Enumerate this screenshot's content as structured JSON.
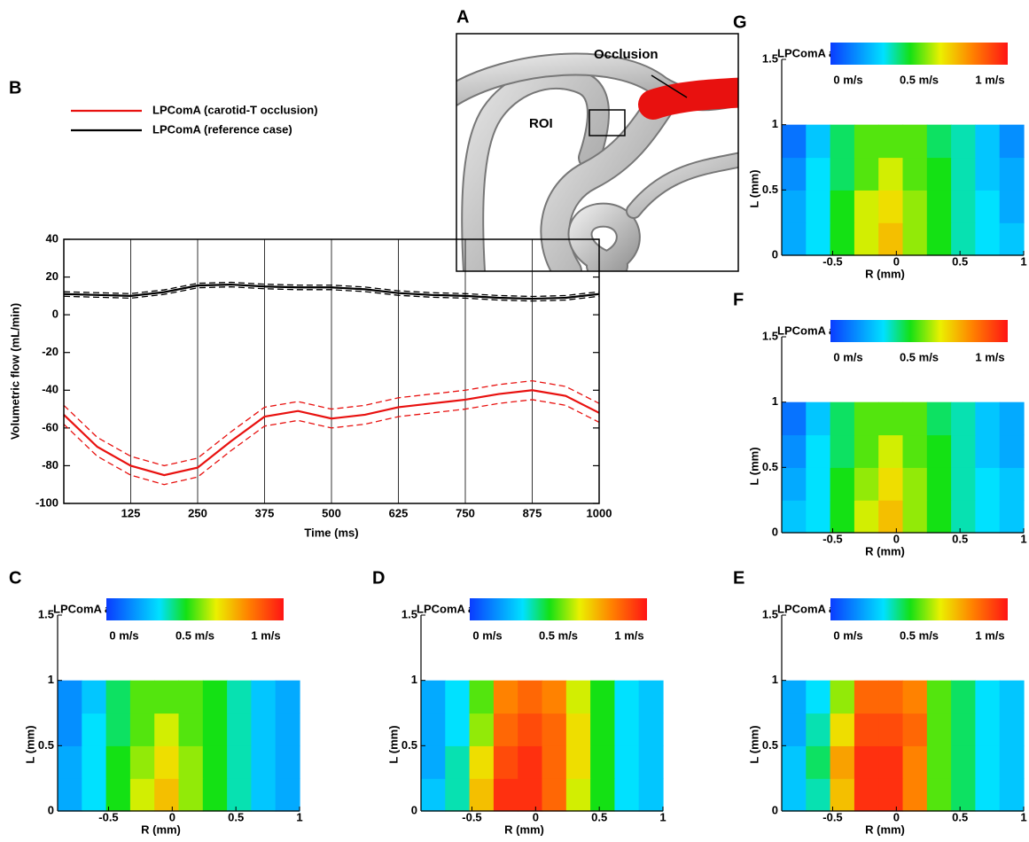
{
  "panel_a": {
    "label": "A",
    "annotations": {
      "occlusion": "Occlusion",
      "roi": "ROI"
    }
  },
  "chart_data": [
    {
      "type": "line",
      "panel": "B",
      "xlabel": "Time (ms)",
      "ylabel": "Volumetric flow (mL/min)",
      "x": [
        0,
        62.5,
        125,
        187.5,
        250,
        312.5,
        375,
        437.5,
        500,
        562.5,
        625,
        687.5,
        750,
        812.5,
        875,
        937.5,
        1000
      ],
      "xlim": [
        0,
        1000
      ],
      "xticks": [
        125,
        250,
        375,
        500,
        625,
        750,
        875,
        1000
      ],
      "ylim": [
        -100,
        40
      ],
      "yticks": [
        -100,
        -80,
        -60,
        -40,
        -20,
        0,
        20,
        40
      ],
      "grid": "x",
      "series": [
        {
          "name": "LPComA (carotid-T occlusion)",
          "color": "#e8110f",
          "values": [
            -53,
            -70,
            -80,
            -85,
            -81,
            -67,
            -54,
            -51,
            -55,
            -53,
            -49,
            -47,
            -45,
            -42,
            -40,
            -43,
            -52
          ],
          "upper": [
            -48,
            -65,
            -75,
            -80,
            -76,
            -62,
            -49,
            -46,
            -50,
            -48,
            -44,
            -42,
            -40,
            -37,
            -35,
            -38,
            -47
          ],
          "lower": [
            -58,
            -75,
            -85,
            -90,
            -86,
            -72,
            -59,
            -56,
            -60,
            -58,
            -54,
            -52,
            -50,
            -47,
            -45,
            -48,
            -57
          ]
        },
        {
          "name": "LPComA (reference case)",
          "color": "#000000",
          "values": [
            11,
            10.5,
            10,
            12,
            15.5,
            16,
            15,
            14.5,
            14.5,
            13.5,
            11.5,
            10.5,
            10,
            9,
            8.5,
            9,
            11
          ],
          "upper": [
            12.2,
            11.7,
            11.2,
            13.2,
            16.7,
            17.2,
            16.2,
            15.7,
            15.7,
            14.7,
            12.7,
            11.7,
            11.2,
            10.2,
            9.7,
            10.2,
            12.2
          ],
          "lower": [
            9.8,
            9.3,
            8.8,
            10.8,
            14.3,
            14.8,
            13.8,
            13.3,
            13.3,
            12.3,
            10.3,
            9.3,
            8.8,
            7.8,
            7.3,
            7.8,
            9.8
          ]
        }
      ]
    },
    {
      "type": "heatmap",
      "panel": "C",
      "title": "LPComA at 0 ms",
      "xlabel": "R (mm)",
      "ylabel": "L (mm)",
      "xlim": [
        -0.9,
        1
      ],
      "xticks": [
        -0.5,
        0,
        0.5,
        1
      ],
      "ylim": [
        0,
        1.5
      ],
      "yticks": [
        0,
        0.5,
        1,
        1.5
      ],
      "zlim": [
        0,
        1
      ],
      "colorbar_ticks": [
        {
          "value": 0,
          "label": "0 m/s"
        },
        {
          "value": 0.5,
          "label": "0.5 m/s"
        },
        {
          "value": 1,
          "label": "1 m/s"
        }
      ],
      "x_edges": [
        -0.9,
        -0.71,
        -0.52,
        -0.33,
        -0.14,
        0.05,
        0.24,
        0.43,
        0.62,
        0.81,
        1
      ],
      "y_edges": [
        0,
        0.25,
        0.5,
        0.75,
        1
      ],
      "z": [
        [
          0.2,
          0.3,
          0.45,
          0.6,
          0.7,
          0.55,
          0.45,
          0.35,
          0.25,
          0.2
        ],
        [
          0.2,
          0.3,
          0.45,
          0.55,
          0.65,
          0.55,
          0.45,
          0.35,
          0.25,
          0.2
        ],
        [
          0.15,
          0.3,
          0.4,
          0.5,
          0.6,
          0.5,
          0.45,
          0.35,
          0.25,
          0.2
        ],
        [
          0.15,
          0.25,
          0.4,
          0.5,
          0.5,
          0.5,
          0.45,
          0.35,
          0.25,
          0.2
        ]
      ]
    },
    {
      "type": "heatmap",
      "panel": "D",
      "title": "LPComA at 125 ms",
      "xlabel": "R (mm)",
      "ylabel": "L (mm)",
      "xlim": [
        -0.9,
        1
      ],
      "xticks": [
        -0.5,
        0,
        0.5,
        1
      ],
      "ylim": [
        0,
        1.5
      ],
      "yticks": [
        0,
        0.5,
        1,
        1.5
      ],
      "zlim": [
        0,
        1
      ],
      "colorbar_ticks": [
        {
          "value": 0,
          "label": "0 m/s"
        },
        {
          "value": 0.5,
          "label": "0.5 m/s"
        },
        {
          "value": 1,
          "label": "1 m/s"
        }
      ],
      "x_edges": [
        -0.9,
        -0.71,
        -0.52,
        -0.33,
        -0.14,
        0.05,
        0.24,
        0.43,
        0.62,
        0.81,
        1
      ],
      "y_edges": [
        0,
        0.25,
        0.5,
        0.75,
        1
      ],
      "z": [
        [
          0.25,
          0.35,
          0.7,
          0.95,
          0.95,
          0.85,
          0.6,
          0.45,
          0.3,
          0.25
        ],
        [
          0.2,
          0.35,
          0.65,
          0.9,
          0.95,
          0.85,
          0.65,
          0.45,
          0.3,
          0.25
        ],
        [
          0.2,
          0.3,
          0.55,
          0.85,
          0.9,
          0.85,
          0.65,
          0.45,
          0.3,
          0.25
        ],
        [
          0.2,
          0.3,
          0.5,
          0.8,
          0.85,
          0.8,
          0.6,
          0.45,
          0.3,
          0.25
        ]
      ]
    },
    {
      "type": "heatmap",
      "panel": "E",
      "title": "LPComA at 250 ms",
      "xlabel": "R (mm)",
      "ylabel": "L (mm)",
      "xlim": [
        -0.9,
        1
      ],
      "xticks": [
        -0.5,
        0,
        0.5,
        1
      ],
      "ylim": [
        0,
        1.5
      ],
      "yticks": [
        0,
        0.5,
        1,
        1.5
      ],
      "zlim": [
        0,
        1
      ],
      "colorbar_ticks": [
        {
          "value": 0,
          "label": "0 m/s"
        },
        {
          "value": 0.5,
          "label": "0.5 m/s"
        },
        {
          "value": 1,
          "label": "1 m/s"
        }
      ],
      "x_edges": [
        -0.9,
        -0.71,
        -0.52,
        -0.33,
        -0.14,
        0.05,
        0.24,
        0.43,
        0.62,
        0.81,
        1
      ],
      "y_edges": [
        0,
        0.25,
        0.5,
        0.75,
        1
      ],
      "z": [
        [
          0.25,
          0.35,
          0.7,
          0.95,
          0.95,
          0.8,
          0.5,
          0.4,
          0.3,
          0.25
        ],
        [
          0.25,
          0.4,
          0.75,
          0.95,
          0.95,
          0.8,
          0.5,
          0.4,
          0.3,
          0.25
        ],
        [
          0.2,
          0.35,
          0.65,
          0.9,
          0.9,
          0.85,
          0.5,
          0.4,
          0.3,
          0.25
        ],
        [
          0.2,
          0.3,
          0.55,
          0.85,
          0.85,
          0.8,
          0.5,
          0.4,
          0.3,
          0.25
        ]
      ]
    },
    {
      "type": "heatmap",
      "panel": "F",
      "title": "LPComA at 375 ms",
      "xlabel": "R (mm)",
      "ylabel": "L (mm)",
      "xlim": [
        -0.9,
        1
      ],
      "xticks": [
        -0.5,
        0,
        0.5,
        1
      ],
      "ylim": [
        0,
        1.5
      ],
      "yticks": [
        0,
        0.5,
        1,
        1.5
      ],
      "zlim": [
        0,
        1
      ],
      "colorbar_ticks": [
        {
          "value": 0,
          "label": "0 m/s"
        },
        {
          "value": 0.5,
          "label": "0.5 m/s"
        },
        {
          "value": 1,
          "label": "1 m/s"
        }
      ],
      "x_edges": [
        -0.9,
        -0.71,
        -0.52,
        -0.33,
        -0.14,
        0.05,
        0.24,
        0.43,
        0.62,
        0.81,
        1
      ],
      "y_edges": [
        0,
        0.25,
        0.5,
        0.75,
        1
      ],
      "z": [
        [
          0.25,
          0.3,
          0.45,
          0.6,
          0.7,
          0.55,
          0.45,
          0.35,
          0.3,
          0.25
        ],
        [
          0.2,
          0.3,
          0.45,
          0.55,
          0.65,
          0.55,
          0.45,
          0.35,
          0.3,
          0.25
        ],
        [
          0.15,
          0.3,
          0.4,
          0.5,
          0.6,
          0.5,
          0.45,
          0.35,
          0.25,
          0.2
        ],
        [
          0.1,
          0.25,
          0.4,
          0.5,
          0.5,
          0.5,
          0.4,
          0.35,
          0.25,
          0.2
        ]
      ]
    },
    {
      "type": "heatmap",
      "panel": "G",
      "title": "LPComA at 500 ms",
      "xlabel": "R (mm)",
      "ylabel": "L (mm)",
      "xlim": [
        -0.9,
        1
      ],
      "xticks": [
        -0.5,
        0,
        0.5,
        1
      ],
      "ylim": [
        0,
        1.5
      ],
      "yticks": [
        0,
        0.5,
        1,
        1.5
      ],
      "zlim": [
        0,
        1
      ],
      "colorbar_ticks": [
        {
          "value": 0,
          "label": "0 m/s"
        },
        {
          "value": 0.5,
          "label": "0.5 m/s"
        },
        {
          "value": 1,
          "label": "1 m/s"
        }
      ],
      "x_edges": [
        -0.9,
        -0.71,
        -0.52,
        -0.33,
        -0.14,
        0.05,
        0.24,
        0.43,
        0.62,
        0.81,
        1
      ],
      "y_edges": [
        0,
        0.25,
        0.5,
        0.75,
        1
      ],
      "z": [
        [
          0.2,
          0.3,
          0.45,
          0.6,
          0.7,
          0.55,
          0.45,
          0.35,
          0.3,
          0.25
        ],
        [
          0.2,
          0.3,
          0.45,
          0.6,
          0.65,
          0.55,
          0.45,
          0.35,
          0.3,
          0.2
        ],
        [
          0.15,
          0.3,
          0.4,
          0.5,
          0.6,
          0.5,
          0.45,
          0.35,
          0.25,
          0.2
        ],
        [
          0.1,
          0.25,
          0.4,
          0.5,
          0.5,
          0.5,
          0.4,
          0.35,
          0.25,
          0.15
        ]
      ]
    }
  ]
}
